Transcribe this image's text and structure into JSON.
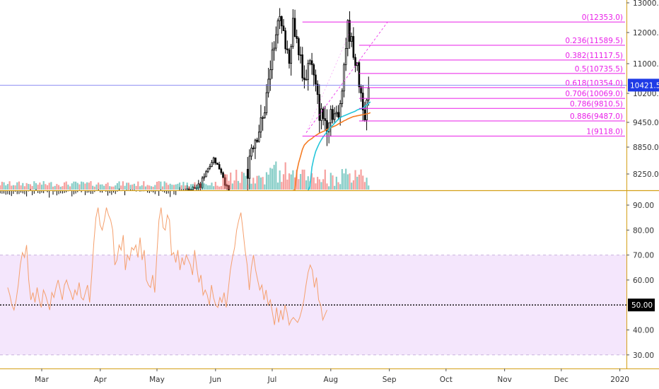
{
  "colors": {
    "up": "#26a69a",
    "down": "#ef5350",
    "candle": "#000000",
    "fib": "#e91ee8",
    "rsi_line": "#f5a06e",
    "rsi_band": "#f4e6fc",
    "ma_orange": "#f57c24",
    "ma_cyan": "#26c6da",
    "price_line": "#6f6ff0",
    "axis_border": "#d4a017",
    "current_price_bg": "#1e3ae6"
  },
  "price_axis": {
    "ticks": [
      {
        "label": "13000.0",
        "value": 13000
      },
      {
        "label": "12000.0",
        "value": 12000
      },
      {
        "label": "11000.0",
        "value": 11000
      },
      {
        "label": "10200.0",
        "value": 10200
      },
      {
        "label": "9450.0",
        "value": 9450
      },
      {
        "label": "8850.0",
        "value": 8850
      },
      {
        "label": "8250.0",
        "value": 8250
      }
    ],
    "current_price_label": "10421.5",
    "current_price": 10421.5
  },
  "rsi_axis": {
    "ticks": [
      {
        "label": "90.00",
        "value": 90
      },
      {
        "label": "80.00",
        "value": 80
      },
      {
        "label": "70.00",
        "value": 70
      },
      {
        "label": "60.00",
        "value": 60
      },
      {
        "label": "40.00",
        "value": 40
      },
      {
        "label": "30.00",
        "value": 30
      }
    ],
    "midline_label": "50.00",
    "midline": 50,
    "band": [
      30,
      70
    ]
  },
  "time_axis": {
    "labels": [
      "Mar",
      "Apr",
      "May",
      "Jun",
      "Jul",
      "Aug",
      "Sep",
      "Oct",
      "Nov",
      "Dec",
      "2020"
    ],
    "day_offsets": [
      0,
      31,
      61,
      92,
      122,
      153,
      184,
      214,
      245,
      275,
      306
    ]
  },
  "chart_data": {
    "type": "candlestick",
    "fib_levels": [
      {
        "ratio": 0,
        "label": "0(12353.0)",
        "price": 12353.0
      },
      {
        "ratio": 0.236,
        "label": "0.236(11589.5)",
        "price": 11589.5
      },
      {
        "ratio": 0.382,
        "label": "0.382(11117.5)",
        "price": 11117.5
      },
      {
        "ratio": 0.5,
        "label": "0.5(10735.5)",
        "price": 10735.5
      },
      {
        "ratio": 0.618,
        "label": "0.618(10354.0)",
        "price": 10354.0
      },
      {
        "ratio": 0.706,
        "label": "0.706(10069.0)",
        "price": 10069.0
      },
      {
        "ratio": 0.786,
        "label": "0.786(9810.5)",
        "price": 9810.5
      },
      {
        "ratio": 0.886,
        "label": "0.886(9487.0)",
        "price": 9487.0
      },
      {
        "ratio": 1,
        "label": "1(9118.0)",
        "price": 9118.0
      }
    ],
    "rsi": [
      57,
      54,
      50,
      48,
      52,
      58,
      66,
      71,
      69,
      74,
      60,
      52,
      55,
      51,
      57,
      52,
      49,
      56,
      54,
      51,
      48,
      55,
      53,
      57,
      60,
      56,
      52,
      58,
      60,
      57,
      55,
      52,
      56,
      54,
      59,
      53,
      52,
      55,
      58,
      51,
      62,
      75,
      85,
      89,
      82,
      80,
      84,
      89,
      86,
      84,
      80,
      66,
      68,
      74,
      72,
      78,
      64,
      70,
      68,
      73,
      72,
      74,
      69,
      77,
      68,
      72,
      60,
      58,
      57,
      62,
      55,
      70,
      84,
      89,
      81,
      80,
      86,
      84,
      70,
      71,
      67,
      72,
      64,
      69,
      66,
      70,
      68,
      66,
      62,
      72,
      65,
      59,
      62,
      54,
      56,
      54,
      50,
      58,
      53,
      50,
      49,
      53,
      51,
      55,
      49,
      56,
      64,
      69,
      73,
      80,
      84,
      87,
      80,
      72,
      66,
      56,
      65,
      70,
      64,
      60,
      56,
      58,
      52,
      56,
      50,
      52,
      47,
      42,
      49,
      43,
      48,
      44,
      50,
      47,
      42,
      44,
      45,
      44,
      43,
      45,
      48,
      52,
      58,
      63,
      66,
      64,
      57,
      61,
      52,
      50,
      44,
      46,
      48
    ],
    "ma_orange": {
      "start_day": 133,
      "values": [
        7800,
        8050,
        8300,
        8500,
        8650,
        8800,
        8900,
        8950,
        9000,
        9030,
        9060,
        9100,
        9130,
        9160,
        9190,
        9210,
        9230,
        9250,
        9280,
        9300,
        9320,
        9340,
        9360,
        9380,
        9410,
        9440,
        9460,
        9490,
        9510,
        9540,
        9560,
        9580,
        9600,
        9610,
        9620,
        9630,
        9640,
        9650,
        9660,
        9670,
        9680,
        9700
      ]
    },
    "ma_cyan": {
      "start_day": 141,
      "values": [
        7800,
        8100,
        8400,
        8600,
        8750,
        8850,
        8950,
        9030,
        9100,
        9160,
        9220,
        9280,
        9330,
        9380,
        9430,
        9480,
        9530,
        9570,
        9600,
        9620,
        9640,
        9660,
        9680,
        9700,
        9720,
        9740,
        9770,
        9790,
        9800,
        9820,
        9860,
        9900,
        9940,
        9980
      ]
    }
  }
}
